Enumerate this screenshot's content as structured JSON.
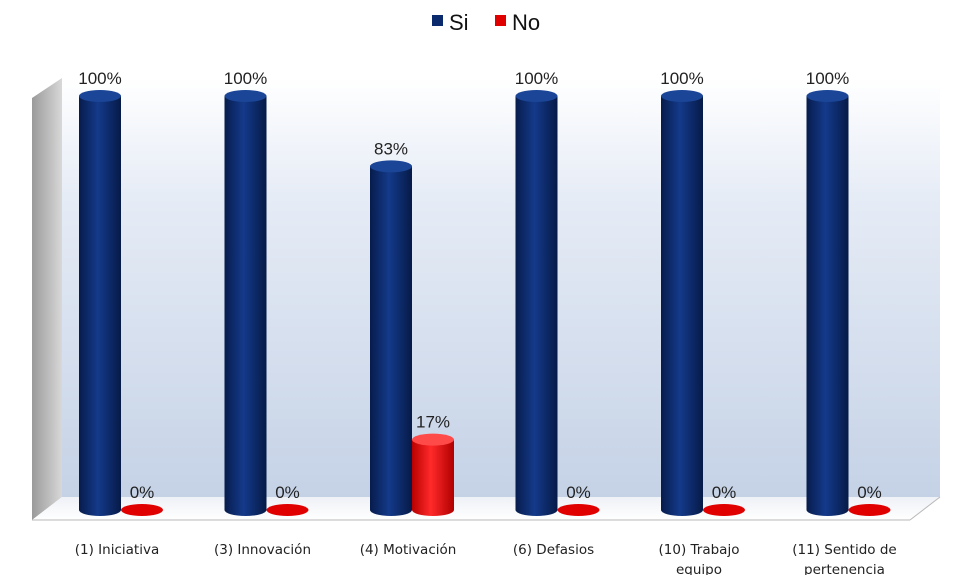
{
  "chart_data": {
    "type": "bar",
    "categories": [
      [
        "(1) Iniciativa"
      ],
      [
        "(3) Innovación"
      ],
      [
        "(4) Motivación"
      ],
      [
        "(6) Defasios"
      ],
      [
        "(10) Trabajo",
        "equipo"
      ],
      [
        "(11) Sentido de",
        "pertenencia"
      ]
    ],
    "series": [
      {
        "name": "Si",
        "values": [
          100,
          100,
          83,
          100,
          100,
          100
        ],
        "labels": [
          "100%",
          "100%",
          "83%",
          "100%",
          "100%",
          "100%"
        ],
        "color": "#0b2a6e"
      },
      {
        "name": "No",
        "values": [
          0,
          0,
          17,
          0,
          0,
          0
        ],
        "labels": [
          "0%",
          "0%",
          "17%",
          "0%",
          "0%",
          "0%"
        ],
        "color": "#e00000"
      }
    ],
    "ylim": [
      0,
      100
    ],
    "legend_position": "top-center",
    "grid": false,
    "style": "3d-cylinder"
  }
}
